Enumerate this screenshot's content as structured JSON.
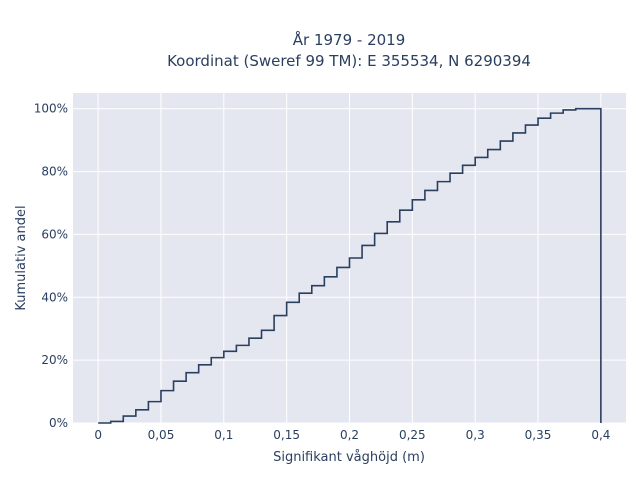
{
  "chart_data": {
    "type": "line",
    "line_shape": "step (cumulative distribution)",
    "title_lines": [
      "År 1979 - 2019",
      "Koordinat (Sweref 99 TM): E 355534, N 6290394"
    ],
    "xlabel": "Signifikant våghöjd (m)",
    "ylabel": "Kumulativ andel",
    "xlim": [
      -0.02,
      0.42
    ],
    "ylim": [
      0,
      1.05
    ],
    "x_ticks": [
      0,
      0.05,
      0.1,
      0.15,
      0.2,
      0.25,
      0.3,
      0.35,
      0.4
    ],
    "x_tick_labels": [
      "0",
      "0,05",
      "0,1",
      "0,15",
      "0,2",
      "0,25",
      "0,3",
      "0,35",
      "0,4"
    ],
    "y_ticks": [
      0,
      0.2,
      0.4,
      0.6,
      0.8,
      1.0
    ],
    "y_tick_labels": [
      "0%",
      "20%",
      "40%",
      "60%",
      "80%",
      "100%"
    ],
    "grid": true,
    "series": [
      {
        "color": "#2a3f5f",
        "x": [
          0,
          0.01,
          0.02,
          0.03,
          0.04,
          0.05,
          0.06,
          0.07,
          0.08,
          0.09,
          0.1,
          0.11,
          0.12,
          0.13,
          0.14,
          0.15,
          0.16,
          0.17,
          0.18,
          0.19,
          0.2,
          0.21,
          0.22,
          0.23,
          0.24,
          0.25,
          0.26,
          0.27,
          0.28,
          0.29,
          0.3,
          0.31,
          0.32,
          0.33,
          0.34,
          0.35,
          0.36,
          0.37,
          0.38,
          0.39,
          0.4
        ],
        "y": [
          0,
          0.005,
          0.022,
          0.042,
          0.068,
          0.103,
          0.133,
          0.16,
          0.185,
          0.208,
          0.228,
          0.247,
          0.27,
          0.295,
          0.342,
          0.384,
          0.413,
          0.437,
          0.465,
          0.495,
          0.525,
          0.565,
          0.603,
          0.64,
          0.677,
          0.71,
          0.74,
          0.768,
          0.795,
          0.82,
          0.845,
          0.87,
          0.897,
          0.923,
          0.948,
          0.97,
          0.986,
          0.996,
          1.0,
          1.0,
          0
        ]
      }
    ]
  }
}
